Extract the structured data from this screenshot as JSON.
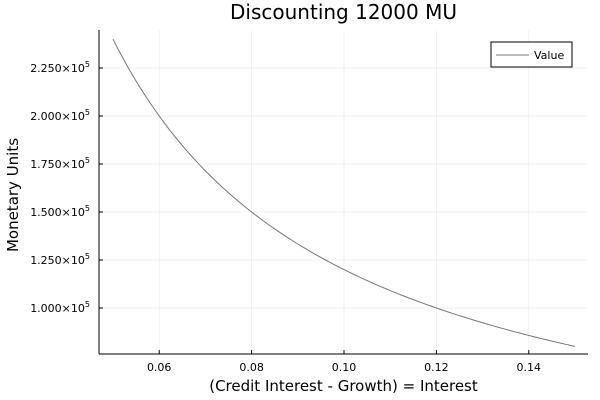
{
  "chart_data": {
    "type": "line",
    "title": "Discounting 12000 MU",
    "xlabel": "(Credit Interest - Growth) = Interest",
    "ylabel": "Monetary Units",
    "xlim": [
      0.047,
      0.153
    ],
    "ylim": [
      75000,
      247000
    ],
    "grid": true,
    "legend_position": "top-right",
    "x_ticks": [
      0.06,
      0.08,
      0.1,
      0.12,
      0.14
    ],
    "x_tick_labels": [
      "0.06",
      "0.08",
      "0.10",
      "0.12",
      "0.14"
    ],
    "y_ticks": [
      100000,
      125000,
      150000,
      175000,
      200000,
      225000
    ],
    "y_tick_labels": [
      {
        "mantissa": "1.000",
        "exp": "5"
      },
      {
        "mantissa": "1.250",
        "exp": "5"
      },
      {
        "mantissa": "1.500",
        "exp": "5"
      },
      {
        "mantissa": "1.750",
        "exp": "5"
      },
      {
        "mantissa": "2.000",
        "exp": "5"
      },
      {
        "mantissa": "2.250",
        "exp": "5"
      }
    ],
    "series": [
      {
        "name": "Value",
        "color": "#777777",
        "x": [
          0.05,
          0.055,
          0.06,
          0.065,
          0.07,
          0.075,
          0.08,
          0.085,
          0.09,
          0.095,
          0.1,
          0.105,
          0.11,
          0.115,
          0.12,
          0.125,
          0.13,
          0.135,
          0.14,
          0.145,
          0.15
        ],
        "values": [
          240000,
          218182,
          200000,
          184615,
          171429,
          160000,
          150000,
          141176,
          133333,
          126316,
          120000,
          114286,
          109091,
          104348,
          100000,
          96000,
          92308,
          88889,
          85714,
          82759,
          80000
        ]
      }
    ]
  },
  "legend": {
    "items": [
      {
        "label": "Value"
      }
    ]
  },
  "colors": {
    "line": "#777777",
    "axis": "#000000",
    "grid": "#e6e6e6",
    "background": "#ffffff"
  }
}
